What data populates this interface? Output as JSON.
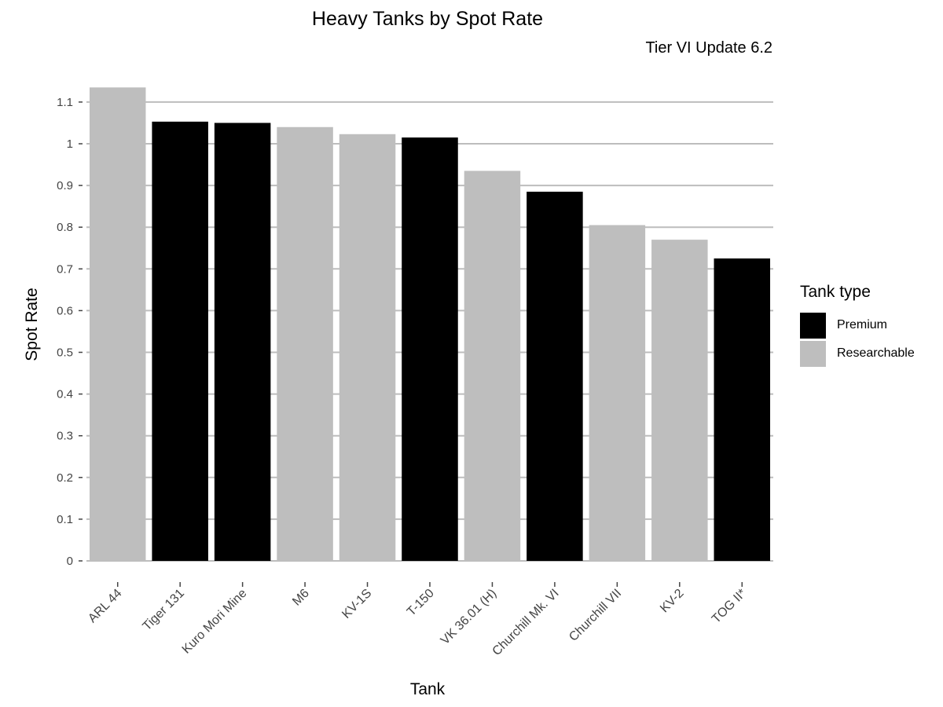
{
  "chart_data": {
    "type": "bar",
    "title": "Heavy Tanks by Spot Rate",
    "subtitle": "Tier VI Update 6.2",
    "xlabel": "Tank",
    "ylabel": "Spot Rate",
    "ylim": [
      0,
      1.15
    ],
    "yticks": [
      0,
      0.1,
      0.2,
      0.3,
      0.4,
      0.5,
      0.6,
      0.7,
      0.8,
      0.9,
      1,
      1.1
    ],
    "ytick_labels": [
      "0",
      "0.1",
      "0.2",
      "0.3",
      "0.4",
      "0.5",
      "0.6",
      "0.7",
      "0.8",
      "0.9",
      "1",
      "1.1"
    ],
    "grid": true,
    "categories": [
      "ARL 44",
      "Tiger 131",
      "Kuro Mori Mine",
      "M6",
      "KV-1S",
      "T-150",
      "VK 36.01 (H)",
      "Churchill Mk. VI",
      "Churchill VII",
      "KV-2",
      "TOG II*"
    ],
    "values": [
      1.135,
      1.053,
      1.05,
      1.04,
      1.023,
      1.015,
      0.935,
      0.885,
      0.805,
      0.77,
      0.725
    ],
    "groups": [
      "Researchable",
      "Premium",
      "Premium",
      "Researchable",
      "Researchable",
      "Premium",
      "Researchable",
      "Premium",
      "Researchable",
      "Researchable",
      "Premium"
    ],
    "legend": {
      "title": "Tank type",
      "placement": "right",
      "entries": [
        {
          "label": "Premium",
          "color": "#000000"
        },
        {
          "label": "Researchable",
          "color": "#bebebe"
        }
      ]
    }
  }
}
